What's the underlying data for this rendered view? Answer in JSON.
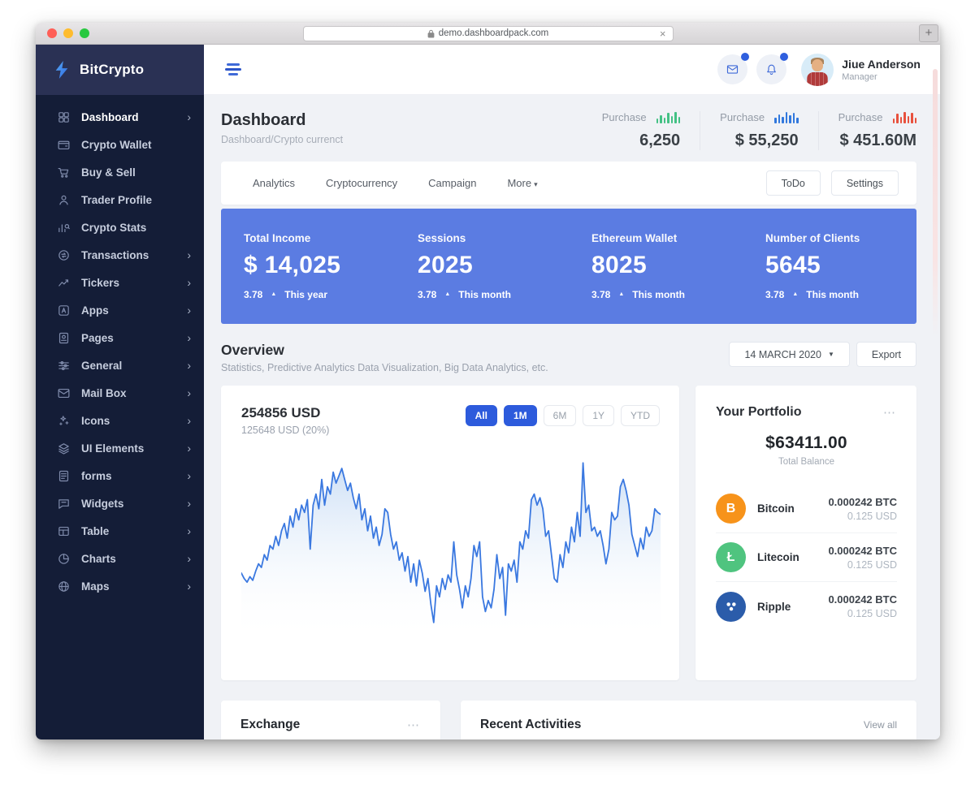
{
  "browser": {
    "url": "demo.dashboardpack.com",
    "close_label": "×",
    "new_tab_label": "+"
  },
  "icons_glyphs": {
    "chevron_right": "›",
    "caret_down": "▾",
    "select_caret": "▼",
    "arrow_up": "▲",
    "dots_menu": "⋯"
  },
  "sidebar": {
    "brand": "BitCrypto",
    "items": [
      {
        "label": "Dashboard",
        "icon": "i-grid",
        "chevron": true,
        "active": true
      },
      {
        "label": "Crypto Wallet",
        "icon": "i-wallet",
        "chevron": false,
        "active": false
      },
      {
        "label": "Buy & Sell",
        "icon": "i-cart",
        "chevron": false,
        "active": false
      },
      {
        "label": "Trader Profile",
        "icon": "i-user",
        "chevron": false,
        "active": false
      },
      {
        "label": "Crypto Stats",
        "icon": "i-stats",
        "chevron": false,
        "active": false
      },
      {
        "label": "Transactions",
        "icon": "i-coin",
        "chevron": true,
        "active": false
      },
      {
        "label": "Tickers",
        "icon": "i-trend",
        "chevron": true,
        "active": false
      },
      {
        "label": "Apps",
        "icon": "i-app",
        "chevron": true,
        "active": false
      },
      {
        "label": "Pages",
        "icon": "i-page",
        "chevron": true,
        "active": false
      },
      {
        "label": "General",
        "icon": "i-sliders",
        "chevron": true,
        "active": false
      },
      {
        "label": "Mail Box",
        "icon": "i-mail",
        "chevron": true,
        "active": false
      },
      {
        "label": "Icons",
        "icon": "i-sparkle",
        "chevron": true,
        "active": false
      },
      {
        "label": "UI Elements",
        "icon": "i-layers",
        "chevron": true,
        "active": false
      },
      {
        "label": "forms",
        "icon": "i-form",
        "chevron": true,
        "active": false
      },
      {
        "label": "Widgets",
        "icon": "i-widget",
        "chevron": true,
        "active": false
      },
      {
        "label": "Table",
        "icon": "i-table",
        "chevron": true,
        "active": false
      },
      {
        "label": "Charts",
        "icon": "i-pie",
        "chevron": true,
        "active": false
      },
      {
        "label": "Maps",
        "icon": "i-globe",
        "chevron": true,
        "active": false
      }
    ]
  },
  "topbar": {
    "user_name": "Jiue Anderson",
    "user_role": "Manager"
  },
  "page_header": {
    "title": "Dashboard",
    "breadcrumb": "Dashboard/Crypto currenct",
    "purchases": [
      {
        "label": "Purchase",
        "value": "6,250",
        "color": "#43c184",
        "bars": [
          6,
          10,
          7,
          13,
          9,
          14,
          8
        ]
      },
      {
        "label": "Purchase",
        "value": "$ 55,250",
        "color": "#3178dd",
        "bars": [
          7,
          11,
          8,
          14,
          10,
          13,
          7
        ]
      },
      {
        "label": "Purchase",
        "value": "$ 451.60M",
        "color": "#e8513d",
        "bars": [
          6,
          12,
          8,
          14,
          9,
          13,
          7
        ]
      }
    ]
  },
  "tabs": {
    "items": [
      {
        "label": "Analytics",
        "caret": false
      },
      {
        "label": "Cryptocurrency",
        "caret": false
      },
      {
        "label": "Campaign",
        "caret": false
      },
      {
        "label": "More",
        "caret": true
      }
    ],
    "actions": [
      {
        "label": "ToDo"
      },
      {
        "label": "Settings"
      }
    ]
  },
  "banner": {
    "bg_color": "#5b7ce2",
    "stats": [
      {
        "label": "Total Income",
        "value": "$ 14,025",
        "change": "3.78",
        "period": "This year"
      },
      {
        "label": "Sessions",
        "value": "2025",
        "change": "3.78",
        "period": "This month"
      },
      {
        "label": "Ethereum Wallet",
        "value": "8025",
        "change": "3.78",
        "period": "This month"
      },
      {
        "label": "Number of Clients",
        "value": "5645",
        "change": "3.78",
        "period": "This month"
      }
    ]
  },
  "overview": {
    "title": "Overview",
    "subtitle": "Statistics, Predictive Analytics Data Visualization, Big Data Analytics, etc.",
    "date_selector": "14 MARCH 2020",
    "export_label": "Export"
  },
  "chart_card": {
    "value": "254856 USD",
    "subvalue": "125648 USD (20%)",
    "ranges": [
      {
        "label": "All",
        "active": true
      },
      {
        "label": "1M",
        "active": true
      },
      {
        "label": "6M",
        "active": false
      },
      {
        "label": "1Y",
        "active": false
      },
      {
        "label": "YTD",
        "active": false
      }
    ]
  },
  "chart_data": {
    "type": "area",
    "title": "254856 USD",
    "subtitle": "125648 USD (20%)",
    "legend": "none",
    "axes": "hidden (sparkline-style price chart)",
    "line_color": "#3a78e0",
    "fill_color_top": "#c9ddf5",
    "ylim": [
      0,
      100
    ],
    "values": [
      35,
      32,
      30,
      33,
      31,
      36,
      40,
      38,
      45,
      42,
      50,
      48,
      55,
      50,
      58,
      62,
      54,
      66,
      60,
      70,
      64,
      72,
      68,
      75,
      48,
      72,
      78,
      70,
      86,
      72,
      82,
      78,
      90,
      84,
      88,
      92,
      86,
      80,
      84,
      76,
      70,
      78,
      64,
      70,
      58,
      66,
      54,
      60,
      50,
      56,
      70,
      68,
      56,
      48,
      52,
      42,
      46,
      36,
      44,
      30,
      40,
      28,
      42,
      35,
      25,
      32,
      18,
      8,
      28,
      22,
      32,
      26,
      34,
      30,
      52,
      34,
      26,
      16,
      28,
      22,
      32,
      50,
      44,
      52,
      22,
      14,
      20,
      16,
      26,
      45,
      32,
      38,
      12,
      40,
      36,
      42,
      30,
      52,
      48,
      58,
      54,
      75,
      78,
      72,
      76,
      70,
      55,
      58,
      45,
      32,
      30,
      45,
      38,
      52,
      46,
      60,
      52,
      68,
      55,
      95,
      68,
      72,
      58,
      60,
      55,
      58,
      50,
      40,
      48,
      68,
      64,
      66,
      82,
      86,
      80,
      72,
      56,
      50,
      44,
      54,
      48,
      60,
      55,
      58,
      70,
      68,
      67
    ]
  },
  "portfolio": {
    "title": "Your Portfolio",
    "balance": "$63411.00",
    "balance_label": "Total Balance",
    "coins": [
      {
        "name": "Bitcoin",
        "glyph": "B",
        "icon": "bitcoin",
        "color": "#f7931a",
        "amount": "0.000242 BTC",
        "usd": "0.125 USD"
      },
      {
        "name": "Litecoin",
        "glyph": "Ł",
        "icon": "litecoin",
        "color": "#4fc47f",
        "amount": "0.000242 BTC",
        "usd": "0.125 USD"
      },
      {
        "name": "Ripple",
        "glyph": "",
        "icon": "ripple",
        "color": "#2b5caa",
        "amount": "0.000242 BTC",
        "usd": "0.125 USD"
      }
    ]
  },
  "bottom": {
    "exchange_title": "Exchange",
    "activities_title": "Recent Activities",
    "view_all": "View all"
  }
}
